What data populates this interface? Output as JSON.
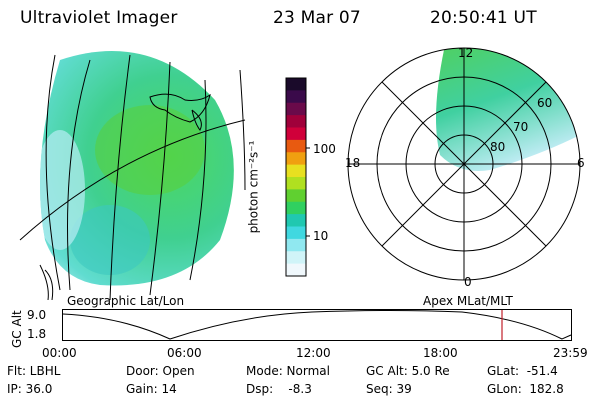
{
  "header": {
    "title": "Ultraviolet Imager",
    "date": "23 Mar 07",
    "time": "20:50:41 UT"
  },
  "colorbar": {
    "unit_label": "photon cm⁻²s⁻¹",
    "ticks": [
      "100",
      "10"
    ],
    "colors": [
      "#1a0a2a",
      "#3a0a4a",
      "#6a0a4a",
      "#a0003a",
      "#d0003a",
      "#e85a10",
      "#f0a010",
      "#e8e020",
      "#b0e020",
      "#60d030",
      "#30d060",
      "#20c8b0",
      "#40d8e0",
      "#90e8f0",
      "#d0f4f8",
      "#f0f8fc"
    ]
  },
  "geo_map": {
    "caption": "Geographic Lat/Lon"
  },
  "polar_plot": {
    "caption": "Apex MLat/MLT",
    "mlt_labels": {
      "top": "12",
      "left": "18",
      "right": "6",
      "bottom": "0"
    },
    "lat_labels": [
      "60",
      "70",
      "80"
    ]
  },
  "timeline": {
    "axis_label": "GC Alt",
    "y_ticks": [
      "9.0",
      "1.8"
    ],
    "x_ticks": [
      "00:00",
      "06:00",
      "12:00",
      "18:00",
      "23:59"
    ],
    "marker_color": "#c0202a"
  },
  "info": {
    "flt": "Flt: LBHL",
    "ip": "IP: 36.0",
    "door": "Door: Open",
    "gain": "Gain: 14",
    "mode": "Mode: Normal",
    "dsp": "Dsp:    -8.3",
    "gc_alt": "GC Alt: 5.0 Re",
    "seq": "Seq: 39",
    "glat": "GLat:  -51.4",
    "glon": "GLon:  182.8"
  }
}
